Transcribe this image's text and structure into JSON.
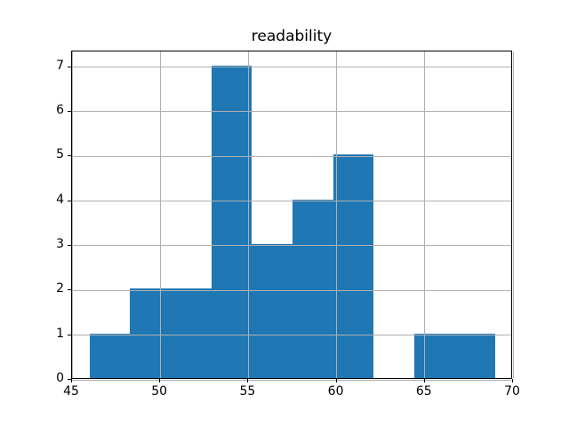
{
  "chart_data": {
    "type": "bar",
    "subtype": "histogram",
    "title": "readability",
    "xlabel": "",
    "ylabel": "",
    "bin_edges": [
      46.0,
      48.3,
      50.6,
      52.9,
      55.2,
      57.5,
      59.8,
      62.1,
      64.4,
      66.7,
      69.0
    ],
    "counts": [
      1,
      2,
      2,
      7,
      3,
      4,
      5,
      0,
      1,
      1
    ],
    "xlim": [
      45,
      70
    ],
    "ylim": [
      0,
      7.35
    ],
    "x_ticks": [
      45,
      50,
      55,
      60,
      65,
      70
    ],
    "y_ticks": [
      0,
      1,
      2,
      3,
      4,
      5,
      6,
      7
    ],
    "grid": true,
    "legend_position": "none",
    "bar_color": "#1f77b4",
    "grid_color": "#b0b0b0",
    "axis_color": "#000000",
    "text_color": "#000000",
    "background_color": "#ffffff"
  }
}
